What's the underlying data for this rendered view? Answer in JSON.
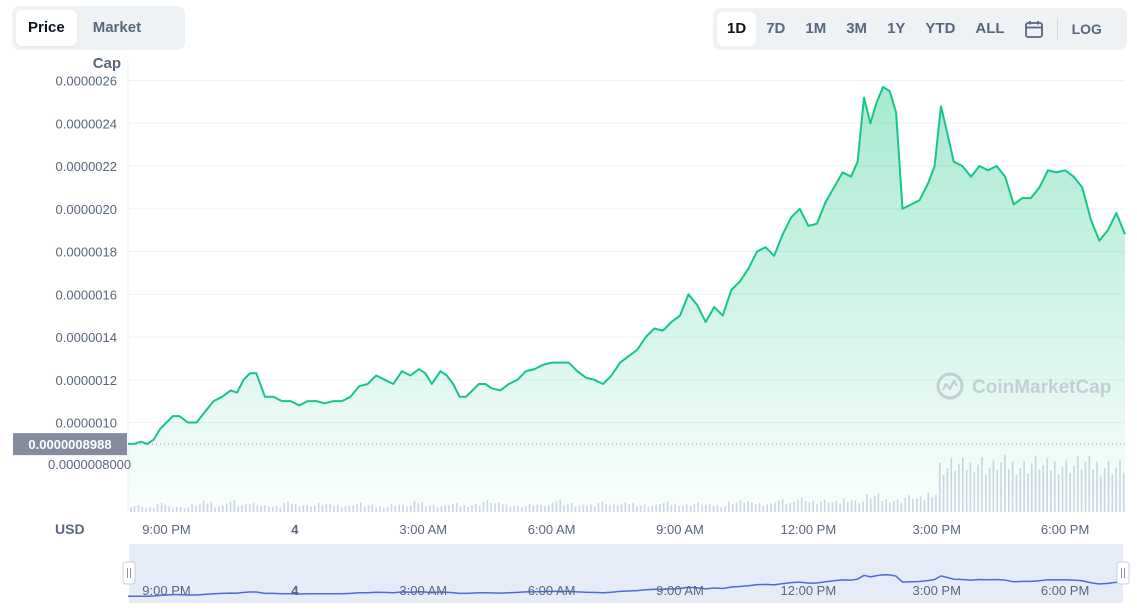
{
  "view_toggle": {
    "items": [
      "Price",
      "Market Cap"
    ],
    "active": "Price"
  },
  "range_toggle": {
    "items": [
      "1D",
      "7D",
      "1M",
      "3M",
      "1Y",
      "YTD",
      "ALL"
    ],
    "active": "1D",
    "calendar_icon": "calendar-icon",
    "log_label": "LOG"
  },
  "currency_label": "USD",
  "watermark": "CoinMarketCap",
  "colors": {
    "line": "#16c784",
    "fill_top": "#16c784",
    "volume": "#cfd6e4",
    "navigator_line": "#4a6cd7",
    "navigator_bg": "#e6ebf8",
    "price_tag_bg": "#858ca2"
  },
  "chart_data": {
    "type": "area",
    "title": "",
    "xlabel": "",
    "ylabel": "",
    "ylim": [
      8.6e-07,
      2.6e-06
    ],
    "y_ticks": [
      "0.0000026",
      "0.0000024",
      "0.0000022",
      "0.0000020",
      "0.0000018",
      "0.0000016",
      "0.0000014",
      "0.0000012",
      "0.0000010"
    ],
    "y_tick_values": [
      2.6e-06,
      2.4e-06,
      2.2e-06,
      2e-06,
      1.8e-06,
      1.6e-06,
      1.4e-06,
      1.2e-06,
      1e-06
    ],
    "volume_tick": "0.0000008000",
    "current_price_label": "0.0000008988",
    "current_price": 8.988e-07,
    "x_ticks": [
      {
        "label": "9:00 PM",
        "t": 21.0
      },
      {
        "label": "4",
        "t": 24.0
      },
      {
        "label": "3:00 AM",
        "t": 27.0
      },
      {
        "label": "6:00 AM",
        "t": 30.0
      },
      {
        "label": "9:00 AM",
        "t": 33.0
      },
      {
        "label": "12:00 PM",
        "t": 36.0
      },
      {
        "label": "3:00 PM",
        "t": 39.0
      },
      {
        "label": "6:00 PM",
        "t": 42.0
      }
    ],
    "x_range": [
      20.1,
      43.4
    ],
    "grid": true,
    "series": [
      {
        "t": [
          20.1,
          20.25,
          20.4,
          20.55,
          20.7,
          20.85,
          21.0,
          21.15,
          21.3,
          21.5,
          21.7,
          21.9,
          22.1,
          22.3,
          22.5,
          22.65,
          22.8,
          22.95,
          23.1,
          23.3,
          23.5,
          23.7,
          23.9,
          24.1,
          24.3,
          24.5,
          24.7,
          24.9,
          25.1,
          25.3,
          25.5,
          25.7,
          25.9,
          26.1,
          26.3,
          26.5,
          26.7,
          26.9,
          27.05,
          27.2,
          27.4,
          27.55,
          27.7,
          27.85,
          28.0,
          28.15,
          28.3,
          28.45,
          28.6,
          28.8,
          29.0,
          29.2,
          29.4,
          29.6,
          29.8,
          30.0,
          30.2,
          30.4,
          30.6,
          30.8,
          31.0,
          31.2,
          31.4,
          31.6,
          31.8,
          32.0,
          32.2,
          32.4,
          32.6,
          32.8,
          33.0,
          33.2,
          33.4,
          33.6,
          33.8,
          34.0,
          34.2,
          34.4,
          34.6,
          34.8,
          35.0,
          35.2,
          35.4,
          35.6,
          35.8,
          36.0,
          36.2,
          36.4,
          36.6,
          36.8,
          37.0,
          37.15,
          37.3,
          37.45,
          37.6,
          37.75,
          37.9,
          38.05,
          38.2,
          38.4,
          38.6,
          38.8,
          38.95,
          39.1,
          39.25,
          39.4,
          39.6,
          39.8,
          40.0,
          40.2,
          40.4,
          40.6,
          40.8,
          41.0,
          41.2,
          41.4,
          41.6,
          41.8,
          42.0,
          42.2,
          42.4,
          42.6,
          42.8,
          43.0,
          43.2,
          43.4
        ],
        "v": [
          9e-07,
          9e-07,
          9.1e-07,
          9e-07,
          9.2e-07,
          9.7e-07,
          1e-06,
          1.03e-06,
          1.03e-06,
          1e-06,
          1e-06,
          1.05e-06,
          1.1e-06,
          1.12e-06,
          1.15e-06,
          1.14e-06,
          1.2e-06,
          1.23e-06,
          1.23e-06,
          1.12e-06,
          1.12e-06,
          1.1e-06,
          1.1e-06,
          1.08e-06,
          1.1e-06,
          1.1e-06,
          1.09e-06,
          1.1e-06,
          1.1e-06,
          1.12e-06,
          1.17e-06,
          1.18e-06,
          1.22e-06,
          1.2e-06,
          1.18e-06,
          1.24e-06,
          1.22e-06,
          1.25e-06,
          1.23e-06,
          1.18e-06,
          1.24e-06,
          1.22e-06,
          1.18e-06,
          1.12e-06,
          1.12e-06,
          1.15e-06,
          1.18e-06,
          1.18e-06,
          1.16e-06,
          1.15e-06,
          1.18e-06,
          1.2e-06,
          1.24e-06,
          1.25e-06,
          1.27e-06,
          1.28e-06,
          1.28e-06,
          1.28e-06,
          1.24e-06,
          1.21e-06,
          1.2e-06,
          1.18e-06,
          1.22e-06,
          1.28e-06,
          1.31e-06,
          1.34e-06,
          1.4e-06,
          1.44e-06,
          1.43e-06,
          1.47e-06,
          1.5e-06,
          1.6e-06,
          1.55e-06,
          1.47e-06,
          1.54e-06,
          1.5e-06,
          1.62e-06,
          1.66e-06,
          1.72e-06,
          1.8e-06,
          1.82e-06,
          1.78e-06,
          1.88e-06,
          1.96e-06,
          2e-06,
          1.92e-06,
          1.93e-06,
          2.03e-06,
          2.1e-06,
          2.17e-06,
          2.15e-06,
          2.22e-06,
          2.52e-06,
          2.4e-06,
          2.5e-06,
          2.57e-06,
          2.55e-06,
          2.45e-06,
          2e-06,
          2.02e-06,
          2.04e-06,
          2.12e-06,
          2.2e-06,
          2.48e-06,
          2.35e-06,
          2.22e-06,
          2.2e-06,
          2.15e-06,
          2.2e-06,
          2.18e-06,
          2.2e-06,
          2.15e-06,
          2.02e-06,
          2.05e-06,
          2.05e-06,
          2.1e-06,
          2.18e-06,
          2.17e-06,
          2.18e-06,
          2.15e-06,
          2.1e-06,
          1.95e-06,
          1.85e-06,
          1.9e-06,
          1.98e-06,
          1.88e-06
        ]
      }
    ],
    "volume_profile": [
      0.12,
      0.08,
      0.15,
      0.1,
      0.09,
      0.14,
      0.18,
      0.11,
      0.2,
      0.13,
      0.16,
      0.12,
      0.1,
      0.17,
      0.14,
      0.12,
      0.15,
      0.13,
      0.11,
      0.16,
      0.12,
      0.1,
      0.14,
      0.12,
      0.18,
      0.13,
      0.11,
      0.15,
      0.12,
      0.14,
      0.2,
      0.16,
      0.13,
      0.11,
      0.14,
      0.12,
      0.22,
      0.15,
      0.12,
      0.13,
      0.18,
      0.14,
      0.16,
      0.13,
      0.12,
      0.17,
      0.15,
      0.14,
      0.16,
      0.13,
      0.12,
      0.18,
      0.2,
      0.16,
      0.15,
      0.22,
      0.17,
      0.26,
      0.19,
      0.21,
      0.18,
      0.24,
      0.2,
      0.3,
      0.23,
      0.22,
      0.28,
      0.25,
      0.35,
      0.85,
      0.9,
      0.88,
      0.95,
      0.86,
      0.92,
      0.9,
      0.88,
      0.94,
      0.87,
      0.91,
      0.89,
      0.93,
      0.9,
      0.88,
      0.86
    ]
  },
  "navigator": {
    "x_ticks": [
      "9:00 PM",
      "4",
      "3:00 AM",
      "6:00 AM",
      "9:00 AM",
      "12:00 PM",
      "3:00 PM",
      "6:00 PM"
    ]
  }
}
